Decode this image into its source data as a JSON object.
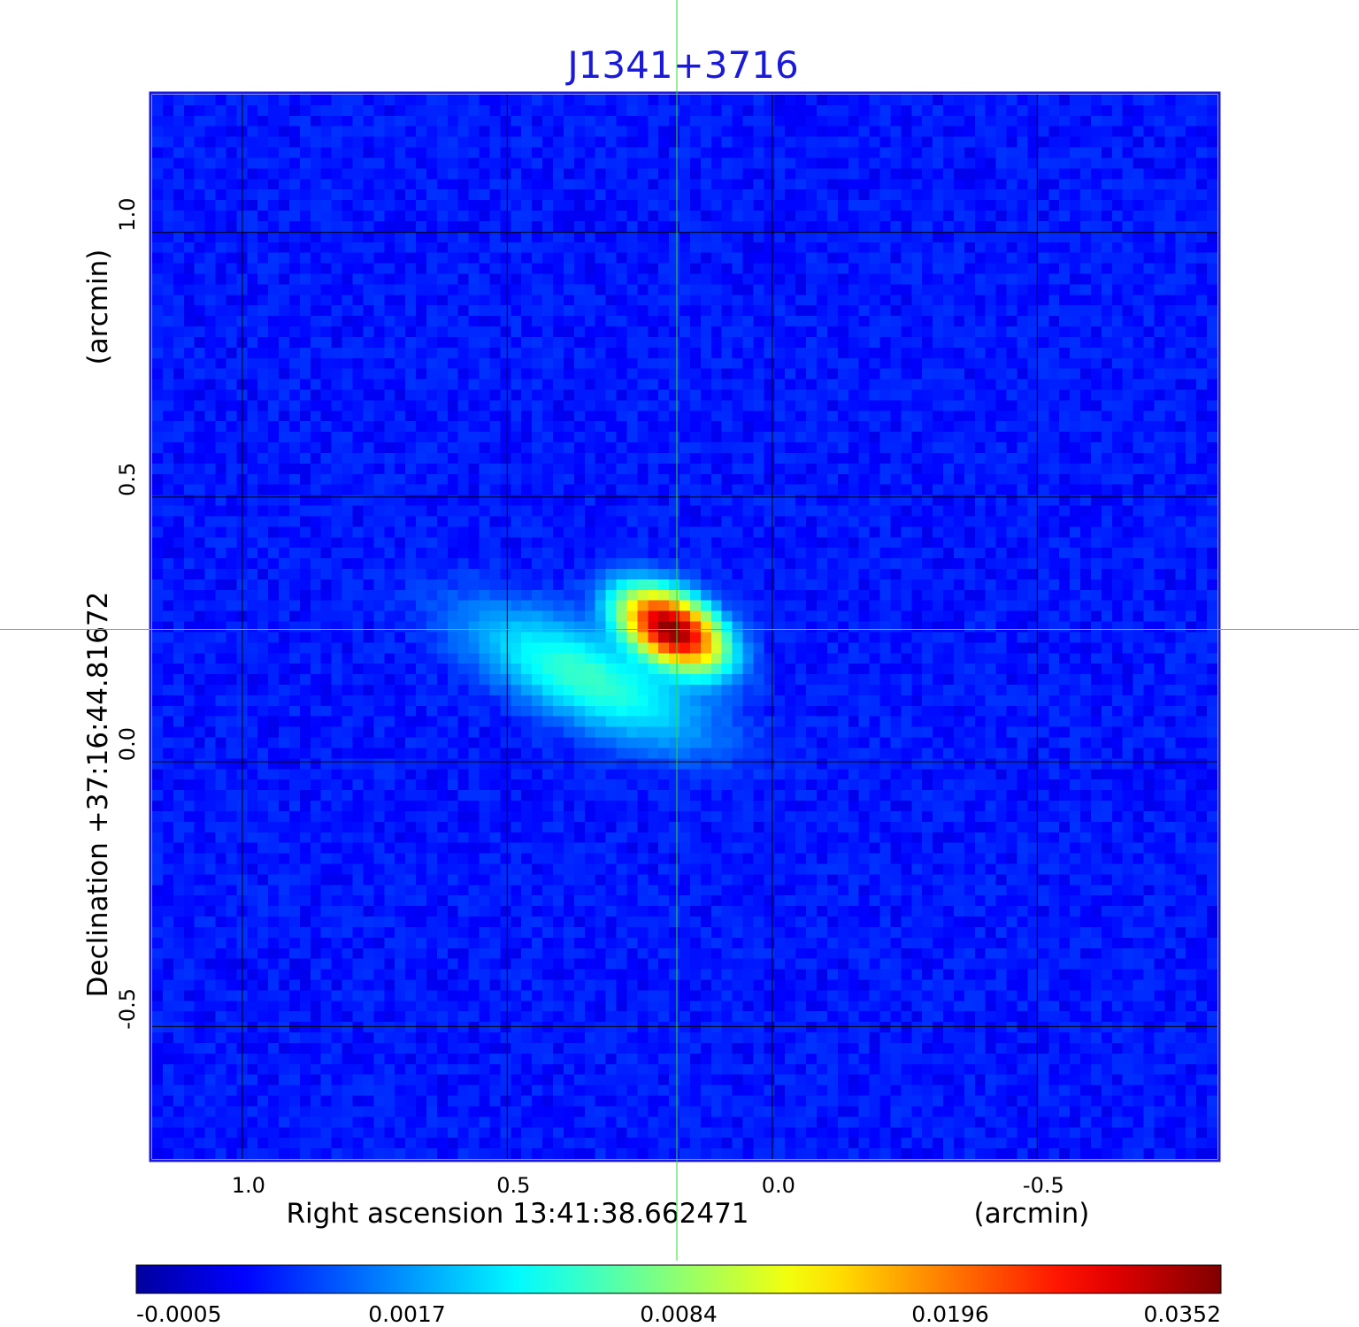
{
  "chart_data": {
    "type": "heatmap",
    "title": "J1341+3716",
    "xlabel": "Right ascension  13:41:38.662471",
    "xunit": "(arcmin)",
    "ylabel": "Declination  +37:16:44.81672",
    "yunit": "(arcmin)",
    "xlim": [
      1.17,
      -0.84
    ],
    "ylim": [
      -0.75,
      1.26
    ],
    "x_ticks": [
      1.0,
      0.5,
      0.0,
      -0.5
    ],
    "x_tick_labels": [
      "1.0",
      "0.5",
      "0.0",
      "-0.5"
    ],
    "y_ticks": [
      1.0,
      0.5,
      0.0,
      -0.5
    ],
    "y_tick_labels": [
      "1.0",
      "0.5",
      "0.0",
      "-0.5"
    ],
    "grid": true,
    "crosshair": {
      "x": 0.18,
      "y": 0.25
    },
    "sources": [
      {
        "x": 0.19,
        "y": 0.25,
        "peak": 0.0352,
        "sigma_major": 0.06,
        "sigma_minor": 0.035,
        "pa_deg": 30
      },
      {
        "x": 0.35,
        "y": 0.16,
        "peak": 0.005,
        "sigma_major": 0.14,
        "sigma_minor": 0.05,
        "pa_deg": 25
      }
    ],
    "background_level": -0.0003,
    "colorbar": {
      "colormap": "jet",
      "range": [
        -0.0005,
        0.0352
      ],
      "tick_labels": [
        "-0.0005",
        "0.0017",
        "0.0084",
        "0.0196",
        "0.0352"
      ]
    },
    "colors": {
      "title": "#1a1ad8",
      "crosshair": "#33dd33",
      "grid": "#000000",
      "frame": "#1a1ad8"
    }
  }
}
